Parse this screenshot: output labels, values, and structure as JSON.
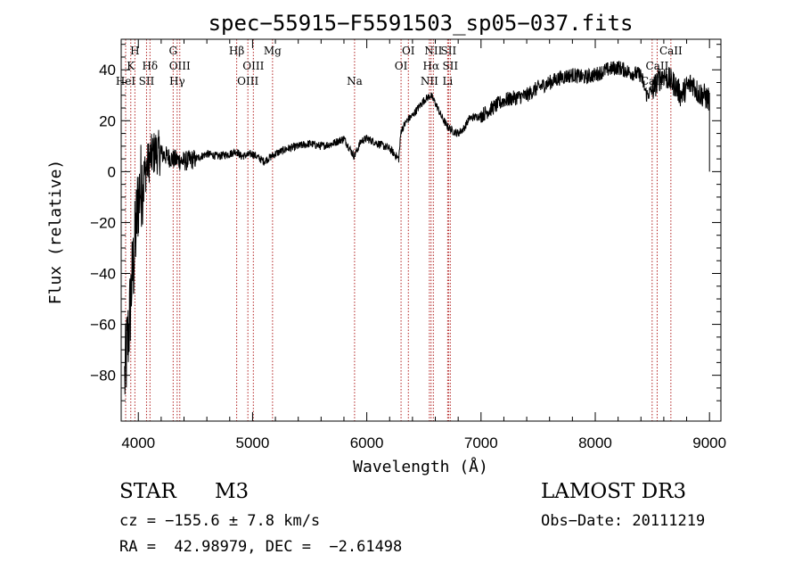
{
  "chart_data": {
    "type": "line",
    "title": "spec−55915−F5591503_sp05−037.fits",
    "xlabel": "Wavelength (Å)",
    "ylabel": "Flux (relative)",
    "xlim": [
      3850,
      9100
    ],
    "ylim": [
      -98,
      52
    ],
    "xticks": [
      4000,
      5000,
      6000,
      7000,
      8000,
      9000
    ],
    "yticks": [
      -80,
      -60,
      -40,
      -20,
      0,
      20,
      40
    ],
    "ytick_labels": [
      "−80",
      "−60",
      "−40",
      "−20",
      "0",
      "20",
      "40"
    ],
    "grid": false,
    "series_anchor_points": {
      "x": [
        3880,
        3900,
        3920,
        3940,
        3960,
        3980,
        4000,
        4030,
        4060,
        4100,
        4150,
        4200,
        4300,
        4400,
        4500,
        4600,
        4700,
        4800,
        4860,
        4900,
        5000,
        5100,
        5200,
        5300,
        5400,
        5500,
        5600,
        5700,
        5800,
        5890,
        5950,
        6000,
        6100,
        6200,
        6280,
        6300,
        6350,
        6400,
        6450,
        6500,
        6560,
        6600,
        6650,
        6700,
        6750,
        6800,
        6850,
        6900,
        7000,
        7100,
        7200,
        7300,
        7400,
        7500,
        7600,
        7700,
        7800,
        7900,
        8000,
        8100,
        8200,
        8300,
        8400,
        8450,
        8500,
        8550,
        8600,
        8650,
        8700,
        8750,
        8800,
        8850,
        8900,
        8950,
        9000
      ],
      "y": [
        -82,
        -70,
        -60,
        -45,
        -35,
        -22,
        -10,
        -4,
        0,
        5,
        8,
        7,
        5,
        4,
        5,
        7,
        6,
        7,
        8,
        6,
        7,
        4,
        7,
        9,
        10,
        11,
        10,
        11,
        13,
        6,
        12,
        13,
        11,
        9,
        5,
        16,
        20,
        22,
        25,
        28,
        30,
        27,
        22,
        18,
        16,
        15,
        17,
        21,
        22,
        25,
        28,
        29,
        30,
        33,
        35,
        37,
        38,
        37,
        38,
        40,
        41,
        39,
        38,
        30,
        32,
        36,
        38,
        36,
        34,
        30,
        33,
        35,
        31,
        30,
        28
      ],
      "final_drop": 0
    },
    "lines": [
      {
        "label": "H",
        "x": 3970,
        "row": 0
      },
      {
        "label": "K",
        "x": 3934,
        "row": 1
      },
      {
        "label": "HeI",
        "x": 3889,
        "row": 2
      },
      {
        "label": "SII",
        "x": 4072,
        "row": 2
      },
      {
        "label": "Hδ",
        "x": 4102,
        "row": 1
      },
      {
        "label": "G",
        "x": 4305,
        "row": 0
      },
      {
        "label": "OIII",
        "x": 4363,
        "row": 1
      },
      {
        "label": "Hγ",
        "x": 4340,
        "row": 2
      },
      {
        "label": "Hβ",
        "x": 4861,
        "row": 0
      },
      {
        "label": "OIII",
        "x": 5007,
        "row": 1
      },
      {
        "label": "OIII",
        "x": 4959,
        "row": 2
      },
      {
        "label": "Mg",
        "x": 5175,
        "row": 0
      },
      {
        "label": "Na",
        "x": 5893,
        "row": 2
      },
      {
        "label": "OI",
        "x": 6364,
        "row": 0
      },
      {
        "label": "OI",
        "x": 6300,
        "row": 1
      },
      {
        "label": "NII",
        "x": 6583,
        "row": 0
      },
      {
        "label": "Hα",
        "x": 6563,
        "row": 1
      },
      {
        "label": "NII",
        "x": 6548,
        "row": 2
      },
      {
        "label": "SII",
        "x": 6716,
        "row": 0
      },
      {
        "label": "SII",
        "x": 6731,
        "row": 1
      },
      {
        "label": "Li",
        "x": 6708,
        "row": 2
      },
      {
        "label": "CaII",
        "x": 8662,
        "row": 0
      },
      {
        "label": "CaII",
        "x": 8542,
        "row": 1
      },
      {
        "label": "CaII",
        "x": 8498,
        "row": 2
      }
    ]
  },
  "info": {
    "object_class": "STAR",
    "subclass": "M3",
    "survey": "LAMOST DR3",
    "cz": "cz = −155.6 ± 7.8 km/s",
    "obs_date": "Obs−Date: 20111219",
    "coords": "RA =  42.98979, DEC =  −2.61498"
  },
  "colors": {
    "spectrum": "#000000",
    "lines": "#b22222",
    "axis": "#000000"
  }
}
